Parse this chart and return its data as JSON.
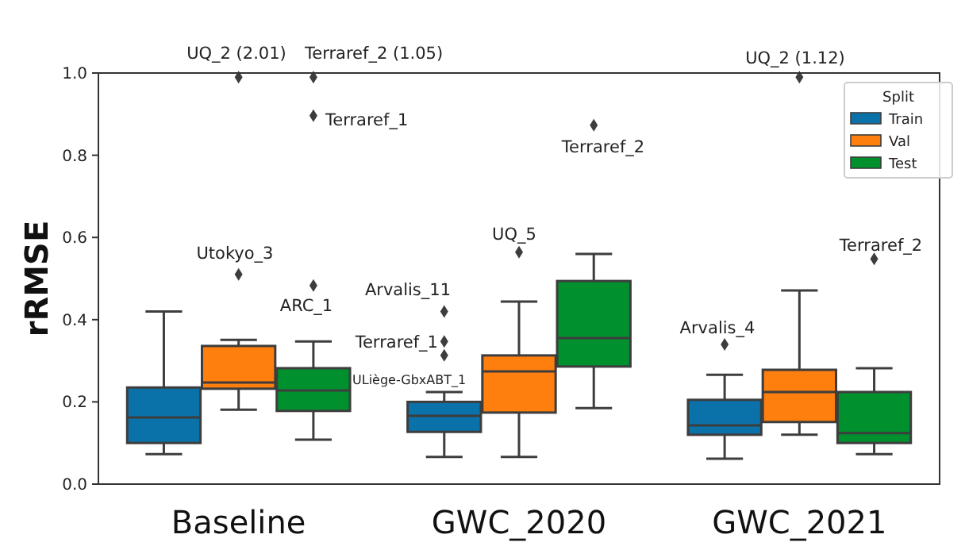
{
  "chart_data": {
    "type": "box",
    "ylabel": "rRMSE",
    "categories": [
      "Baseline",
      "GWC_2020",
      "GWC_2021"
    ],
    "ylim": [
      0,
      1
    ],
    "yticks": [
      {
        "value": 0,
        "label": "0.0"
      },
      {
        "value": 0.2,
        "label": "0.2"
      },
      {
        "value": 0.4,
        "label": "0.4"
      },
      {
        "value": 0.6,
        "label": "0.6"
      },
      {
        "value": 0.8,
        "label": "0.8"
      },
      {
        "value": 1,
        "label": "1.0"
      }
    ],
    "legend": "top right",
    "legend_title": "Split",
    "series": [
      {
        "name": "Train",
        "color": "#0a72a8",
        "boxes": [
          {
            "low": 0.073,
            "q1": 0.1,
            "median": 0.162,
            "q3": 0.235,
            "high": 0.42
          },
          {
            "low": 0.066,
            "q1": 0.127,
            "median": 0.166,
            "q3": 0.2,
            "high": 0.224,
            "outliers": [
              0.42,
              0.347,
              0.313
            ]
          },
          {
            "low": 0.062,
            "q1": 0.12,
            "median": 0.143,
            "q3": 0.205,
            "high": 0.266,
            "outliers": [
              0.34
            ]
          }
        ]
      },
      {
        "name": "Val",
        "color": "#ff7f0e",
        "boxes": [
          {
            "low": 0.181,
            "q1": 0.232,
            "median": 0.247,
            "q3": 0.336,
            "high": 0.351,
            "outliers": [
              0.51,
              0.99
            ]
          },
          {
            "low": 0.066,
            "q1": 0.174,
            "median": 0.274,
            "q3": 0.313,
            "high": 0.444,
            "outliers": [
              0.564
            ]
          },
          {
            "low": 0.12,
            "q1": 0.151,
            "median": 0.224,
            "q3": 0.278,
            "high": 0.471,
            "outliers": [
              0.99
            ]
          }
        ]
      },
      {
        "name": "Test",
        "color": "#00902e",
        "boxes": [
          {
            "low": 0.108,
            "q1": 0.178,
            "median": 0.228,
            "q3": 0.282,
            "high": 0.347,
            "outliers": [
              0.483,
              0.896,
              0.99
            ]
          },
          {
            "low": 0.185,
            "q1": 0.286,
            "median": 0.355,
            "q3": 0.494,
            "high": 0.56,
            "outliers": [
              0.873
            ]
          },
          {
            "low": 0.073,
            "q1": 0.1,
            "median": 0.124,
            "q3": 0.224,
            "high": 0.282,
            "outliers": [
              0.548
            ]
          }
        ]
      }
    ],
    "annotations": [
      "UQ_2 (2.01)",
      "Terraref_2 (1.05)",
      "Terraref_1",
      "Utokyo_3",
      "ARC_1",
      "Arvalis_11",
      "Terraref_1",
      "ULiège-GbxABT_1",
      "UQ_5",
      "Terraref_2",
      "Arvalis_4",
      "UQ_2 (1.12)",
      "Terraref_2"
    ]
  }
}
